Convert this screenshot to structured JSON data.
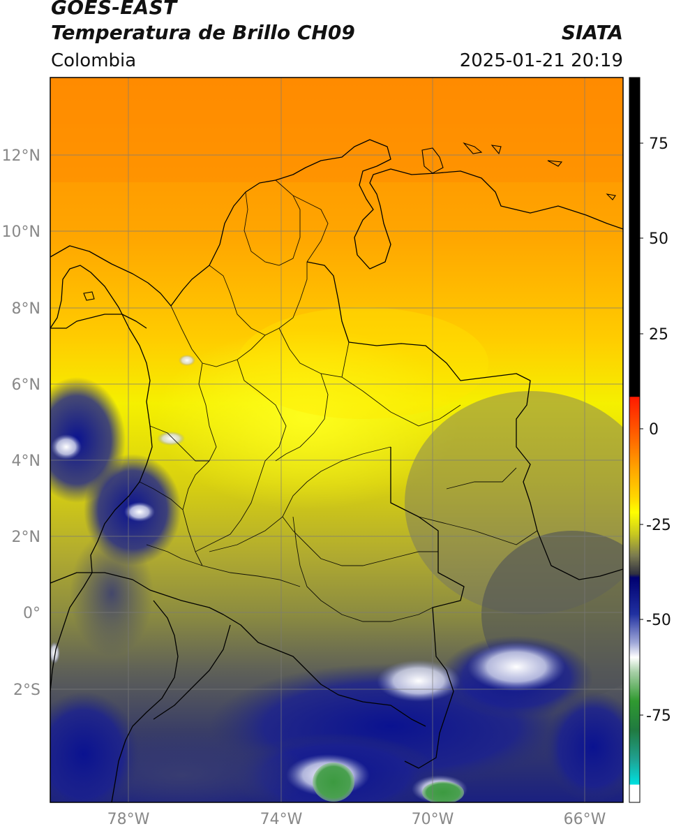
{
  "header": {
    "line1": "GOES-EAST",
    "line2": "Temperatura de Brillo CH09",
    "region": "Colombia",
    "org": "SIATA",
    "datetime": "2025-01-21 20:19"
  },
  "axes": {
    "lat_ticks": [
      "12°N",
      "10°N",
      "8°N",
      "6°N",
      "4°N",
      "2°N",
      "0°",
      "2°S"
    ],
    "lon_ticks": [
      "78°W",
      "74°W",
      "70°W",
      "66°W"
    ]
  },
  "colorbar": {
    "ticks": [
      "75",
      "50",
      "25",
      "0",
      "-25",
      "-50",
      "-75"
    ]
  },
  "colors": {
    "orange": "#ff9a00",
    "yellow": "#ffff00",
    "olive": "#a8a830",
    "dark_gray": "#4c5058",
    "navy": "#101a80",
    "white": "#ffffff",
    "green": "#3a9a3a",
    "teal": "#20c0a0",
    "red": "#ff2000",
    "black": "#000000"
  }
}
